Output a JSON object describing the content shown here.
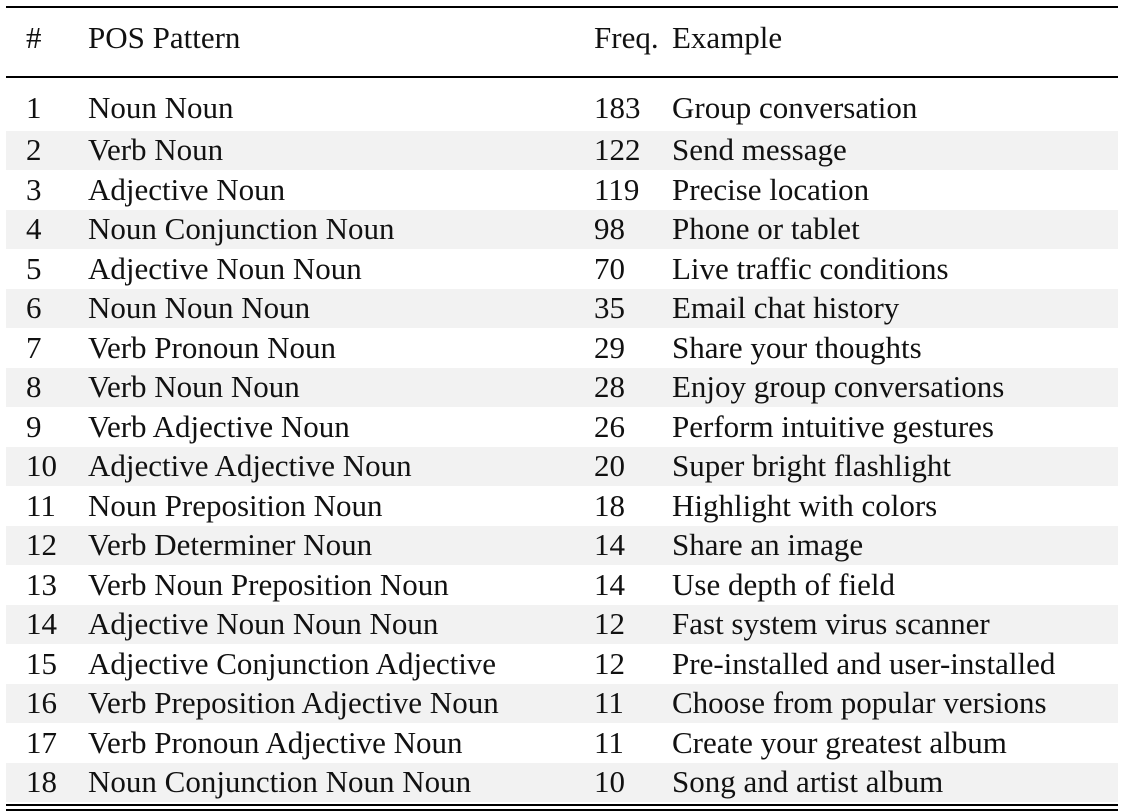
{
  "table": {
    "headers": {
      "num": "#",
      "pattern": "POS Pattern",
      "freq": "Freq.",
      "example": "Example"
    },
    "rows": [
      {
        "num": "1",
        "pattern": "Noun Noun",
        "freq": "183",
        "example": "Group conversation"
      },
      {
        "num": "2",
        "pattern": "Verb Noun",
        "freq": "122",
        "example": "Send message"
      },
      {
        "num": "3",
        "pattern": "Adjective Noun",
        "freq": "119",
        "example": "Precise location"
      },
      {
        "num": "4",
        "pattern": "Noun Conjunction Noun",
        "freq": "98",
        "example": "Phone or tablet"
      },
      {
        "num": "5",
        "pattern": "Adjective Noun Noun",
        "freq": "70",
        "example": "Live traffic conditions"
      },
      {
        "num": "6",
        "pattern": "Noun Noun Noun",
        "freq": "35",
        "example": "Email chat history"
      },
      {
        "num": "7",
        "pattern": "Verb Pronoun Noun",
        "freq": "29",
        "example": "Share your thoughts"
      },
      {
        "num": "8",
        "pattern": "Verb Noun Noun",
        "freq": "28",
        "example": "Enjoy group conversations"
      },
      {
        "num": "9",
        "pattern": "Verb Adjective Noun",
        "freq": "26",
        "example": "Perform intuitive gestures"
      },
      {
        "num": "10",
        "pattern": "Adjective Adjective Noun",
        "freq": "20",
        "example": "Super bright flashlight"
      },
      {
        "num": "11",
        "pattern": "Noun Preposition Noun",
        "freq": "18",
        "example": "Highlight with colors"
      },
      {
        "num": "12",
        "pattern": "Verb Determiner Noun",
        "freq": "14",
        "example": "Share an image"
      },
      {
        "num": "13",
        "pattern": "Verb Noun Preposition Noun",
        "freq": "14",
        "example": "Use depth of field"
      },
      {
        "num": "14",
        "pattern": "Adjective Noun Noun Noun",
        "freq": "12",
        "example": "Fast system virus scanner"
      },
      {
        "num": "15",
        "pattern": "Adjective Conjunction Adjective",
        "freq": "12",
        "example": "Pre-installed and user-installed"
      },
      {
        "num": "16",
        "pattern": "Verb Preposition Adjective Noun",
        "freq": "11",
        "example": "Choose from popular versions"
      },
      {
        "num": "17",
        "pattern": "Verb Pronoun Adjective Noun",
        "freq": "11",
        "example": "Create your greatest album"
      },
      {
        "num": "18",
        "pattern": "Noun Conjunction Noun Noun",
        "freq": "10",
        "example": "Song and artist album"
      }
    ]
  }
}
